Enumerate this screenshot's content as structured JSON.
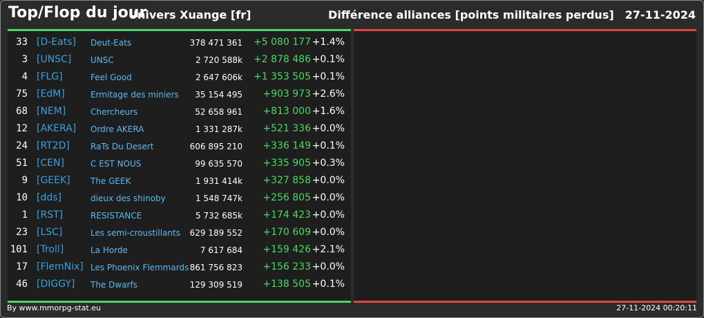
{
  "header": {
    "title": "Top/Flop du jour",
    "universe": "Univers Xuange [fr]",
    "subject": "Différence alliances [points militaires perdus]",
    "date": "27-11-2024"
  },
  "colors": {
    "positive": "#4cd964",
    "negative": "#e0463f",
    "tag": "#3aa0e0"
  },
  "top_list": [
    {
      "rank": "33",
      "tag": "[D-Eats]",
      "name": "Deut-Eats",
      "points": "378 471 361",
      "diff": "+5 080 177",
      "pct": "+1.4%"
    },
    {
      "rank": "3",
      "tag": "[UNSC]",
      "name": "UNSC",
      "points": "2 720 588k",
      "diff": "+2 878 486",
      "pct": "+0.1%"
    },
    {
      "rank": "4",
      "tag": "[FLG]",
      "name": "Feel Good",
      "points": "2 647 606k",
      "diff": "+1 353 505",
      "pct": "+0.1%"
    },
    {
      "rank": "75",
      "tag": "[EdM]",
      "name": "Ermitage des miniers",
      "points": "35 154 495",
      "diff": "+903 973",
      "pct": "+2.6%"
    },
    {
      "rank": "68",
      "tag": "[NEM]",
      "name": "Chercheurs",
      "points": "52 658 961",
      "diff": "+813 000",
      "pct": "+1.6%"
    },
    {
      "rank": "12",
      "tag": "[AKERA]",
      "name": "Ordre AKERA",
      "points": "1 331 287k",
      "diff": "+521 336",
      "pct": "+0.0%"
    },
    {
      "rank": "24",
      "tag": "[RT2D]",
      "name": "RaTs Du Desert",
      "points": "606 895 210",
      "diff": "+336 149",
      "pct": "+0.1%"
    },
    {
      "rank": "51",
      "tag": "[CEN]",
      "name": "C EST NOUS",
      "points": "99 635 570",
      "diff": "+335 905",
      "pct": "+0.3%"
    },
    {
      "rank": "9",
      "tag": "[GEEK]",
      "name": "The GEEK",
      "points": "1 931 414k",
      "diff": "+327 858",
      "pct": "+0.0%"
    },
    {
      "rank": "10",
      "tag": "[dds]",
      "name": "dieux des shinoby",
      "points": "1 548 747k",
      "diff": "+256 805",
      "pct": "+0.0%"
    },
    {
      "rank": "1",
      "tag": "[RST]",
      "name": "RESISTANCE",
      "points": "5 732 685k",
      "diff": "+174 423",
      "pct": "+0.0%"
    },
    {
      "rank": "23",
      "tag": "[LSC]",
      "name": "Les semi-croustillants",
      "points": "629 189 552",
      "diff": "+170 609",
      "pct": "+0.0%"
    },
    {
      "rank": "101",
      "tag": "[Troll]",
      "name": "La Horde",
      "points": "7 617 684",
      "diff": "+159 426",
      "pct": "+2.1%"
    },
    {
      "rank": "17",
      "tag": "[FlemNix]",
      "name": "Les Phoenix Flemmards",
      "points": "861 756 823",
      "diff": "+156 233",
      "pct": "+0.0%"
    },
    {
      "rank": "46",
      "tag": "[DIGGY]",
      "name": "The Dwarfs",
      "points": "129 309 519",
      "diff": "+138 505",
      "pct": "+0.1%"
    }
  ],
  "flop_list": [],
  "footer": {
    "credit": "By www.mmorpg-stat.eu",
    "timestamp": "27-11-2024 00:20:11"
  }
}
